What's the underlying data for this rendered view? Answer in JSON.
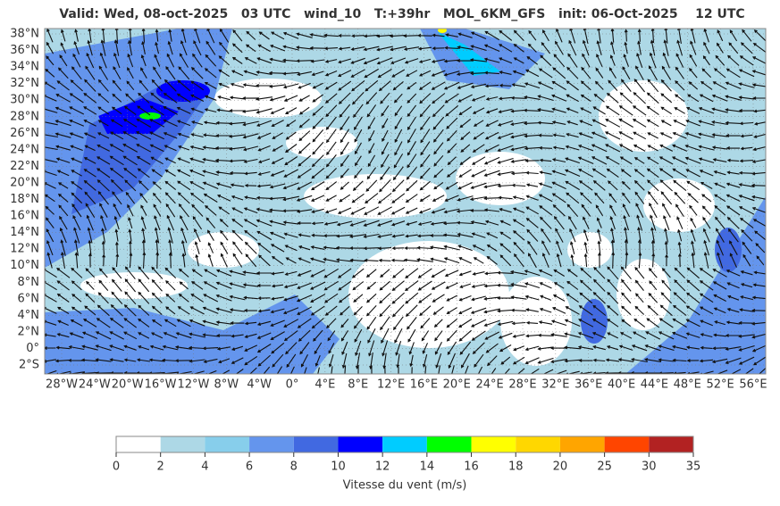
{
  "header": {
    "title": "Valid: Wed, 08-oct-2025   03 UTC   wind_10   T:+39hr   MOL_6KM_GFS   init: 06-Oct-2025    12 UTC"
  },
  "map": {
    "lat_labels": [
      "38°N",
      "36°N",
      "34°N",
      "32°N",
      "30°N",
      "28°N",
      "26°N",
      "24°N",
      "22°N",
      "20°N",
      "18°N",
      "16°N",
      "14°N",
      "12°N",
      "10°N",
      "8°N",
      "6°N",
      "4°N",
      "2°N",
      "0°",
      "2°S"
    ],
    "lon_labels": [
      "28°W",
      "24°W",
      "20°W",
      "16°W",
      "12°W",
      "8°W",
      "4°W",
      "0°",
      "4°E",
      "8°E",
      "12°E",
      "16°E",
      "20°E",
      "24°E",
      "28°E",
      "32°E",
      "36°E",
      "40°E",
      "44°E",
      "48°E",
      "52°E",
      "56°E"
    ]
  },
  "colorbar": {
    "levels": [
      0,
      2,
      4,
      6,
      8,
      10,
      12,
      14,
      16,
      18,
      20,
      25,
      30,
      35
    ],
    "colors": [
      "#ffffff",
      "#add8e6",
      "#87ceeb",
      "#6495ed",
      "#4169e1",
      "#0000ff",
      "#00ccff",
      "#00ff00",
      "#ffff00",
      "#ffd700",
      "#ffa500",
      "#ff4500",
      "#b22222"
    ],
    "label": "Vitesse du vent (m/s)"
  }
}
